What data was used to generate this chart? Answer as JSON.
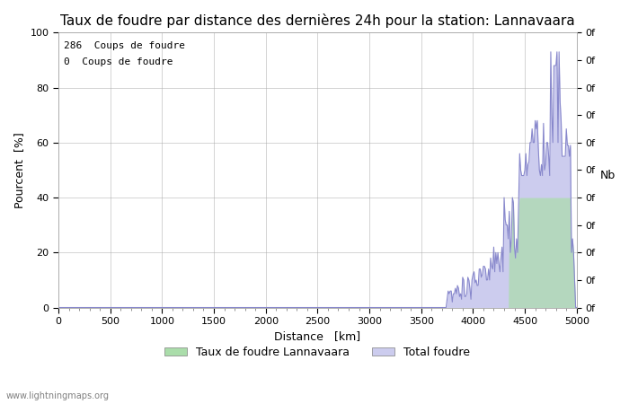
{
  "title": "Taux de foudre par distance des dernières 24h pour la station: Lannavaara",
  "xlabel": "Distance   [km]",
  "ylabel_left": "Pourcent  [%]",
  "ylabel_right": "Nb",
  "annotation_line1": "286  Coups de foudre",
  "annotation_line2": "0  Coups de foudre",
  "legend_label1": "Taux de foudre Lannavaara",
  "legend_label2": "Total foudre",
  "watermark": "www.lightningmaps.org",
  "xlim": [
    0,
    5000
  ],
  "ylim": [
    0,
    100
  ],
  "right_ytick_labels": [
    "0f",
    "0f",
    "0f",
    "0f",
    "0f",
    "0f",
    "0f",
    "0f",
    "0f",
    "0f",
    "0f"
  ],
  "bg_color": "#ffffff",
  "grid_color": "#aaaaaa",
  "line_color": "#8888cc",
  "fill_color": "#ccccee",
  "green_fill_color": "#aaddaa",
  "title_fontsize": 11,
  "label_fontsize": 9,
  "tick_fontsize": 8,
  "data_x": [
    3780,
    3800,
    3820,
    3840,
    3860,
    3880,
    3900,
    3920,
    3940,
    3960,
    3980,
    4000,
    4020,
    4040,
    4060,
    4080,
    4100,
    4120,
    4140,
    4160,
    4180,
    4200,
    4220,
    4240,
    4260,
    4280,
    4300,
    4320,
    4340,
    4360,
    4380,
    4400,
    4420,
    4440,
    4460,
    4480,
    4500,
    4520,
    4540,
    4560,
    4580,
    4600,
    4620,
    4640,
    4660,
    4680,
    4700,
    4720,
    4740,
    4760,
    4780,
    4800,
    4820,
    4840,
    4860,
    4880,
    4900,
    4920,
    4940,
    4960,
    4980,
    5000
  ],
  "data_y_line": [
    0,
    2,
    5,
    3,
    4,
    7,
    8,
    6,
    4,
    5,
    3,
    4,
    8,
    10,
    13,
    10,
    11,
    9,
    7,
    14,
    13,
    8,
    9,
    13,
    18,
    20,
    22,
    19,
    35,
    40,
    38,
    20,
    19,
    20,
    44,
    48,
    53,
    54,
    52,
    55,
    56,
    50,
    49,
    65,
    73,
    60,
    55,
    50,
    52,
    48,
    57,
    67,
    63,
    59,
    93,
    88,
    68,
    59,
    60,
    27,
    5,
    0
  ],
  "data_y_fill": [
    0,
    0,
    0,
    0,
    0,
    0,
    0,
    0,
    0,
    0,
    0,
    0,
    0,
    0,
    0,
    0,
    0,
    0,
    0,
    0,
    0,
    0,
    0,
    0,
    0,
    0,
    0,
    0,
    0,
    40,
    38,
    20,
    19,
    20,
    40,
    40,
    40,
    40,
    40,
    40,
    40,
    40,
    40,
    40,
    40,
    40,
    40,
    40,
    40,
    40,
    40,
    40,
    40,
    40,
    40,
    40,
    40,
    40,
    40,
    27,
    5,
    0
  ]
}
